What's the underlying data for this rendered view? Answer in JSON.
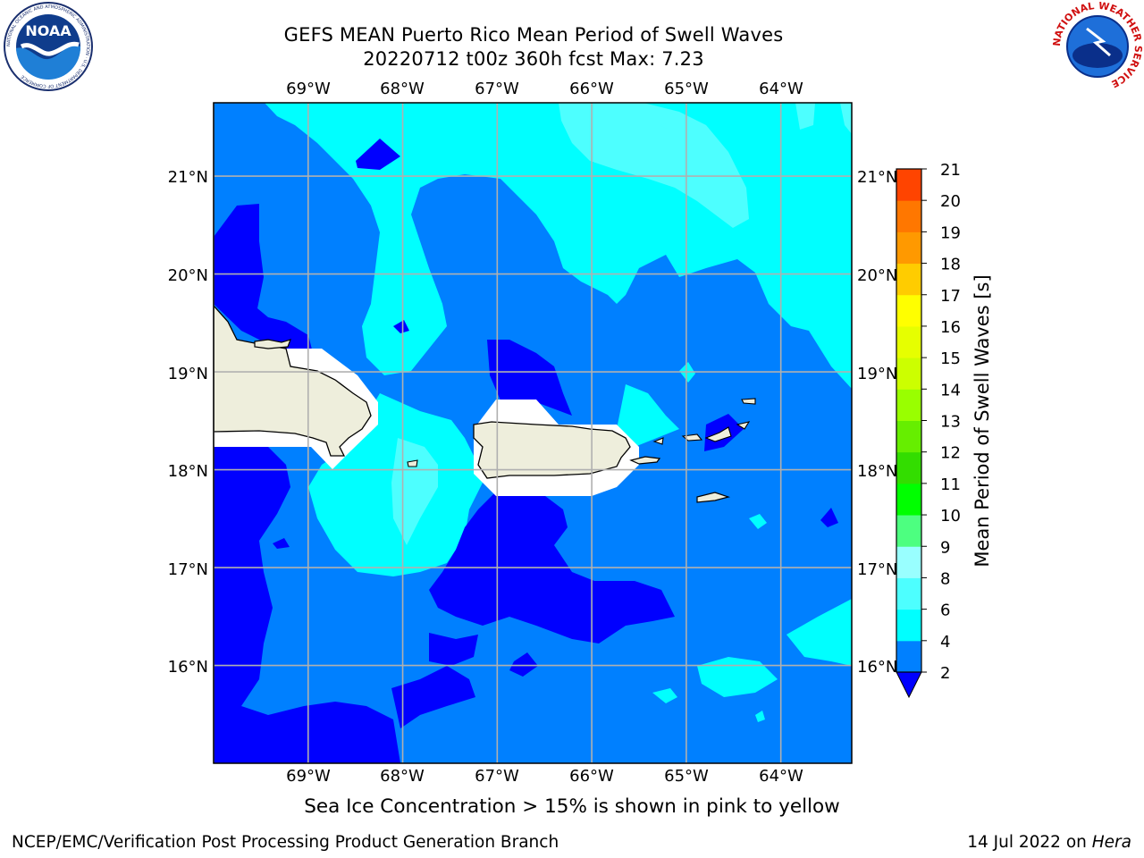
{
  "title": {
    "line1": "GEFS MEAN Puerto Rico Mean Period of Swell Waves",
    "line2": "20220712 t00z 360h fcst   Max: 7.23"
  },
  "subtitle": "Sea Ice Concentration > 15% is shown in pink to yellow",
  "footer": {
    "left": "NCEP/EMC/Verification Post Processing Product Generation Branch",
    "right_prefix": "14 Jul 2022 on ",
    "right_machine": "Hera"
  },
  "map": {
    "lon_labels": [
      "69°W",
      "68°W",
      "67°W",
      "66°W",
      "65°W",
      "64°W"
    ],
    "lat_labels": [
      "21°N",
      "20°N",
      "19°N",
      "18°N",
      "17°N",
      "16°N"
    ],
    "lon_range": [
      -70,
      -63.25
    ],
    "lat_range": [
      15,
      21.75
    ],
    "colors": {
      "ocean_2_4": "#0080ff",
      "ocean_lt2": "#0000ff",
      "ocean_4_6": "#00ffff",
      "ocean_6_8": "#4dffff",
      "land": "#eeeedc",
      "nodata": "#ffffff",
      "grid": "#b0b0b0"
    }
  },
  "colorbar": {
    "label": "Mean Period of Swell Waves [s]",
    "ticks": [
      "2",
      "4",
      "6",
      "8",
      "9",
      "10",
      "11",
      "12",
      "13",
      "14",
      "15",
      "16",
      "17",
      "18",
      "19",
      "20",
      "21"
    ],
    "colors": [
      "#0000ff",
      "#0080ff",
      "#00ffff",
      "#4dffff",
      "#99ffff",
      "#4dff80",
      "#00ff00",
      "#33dd00",
      "#66ee00",
      "#99ff00",
      "#ccff00",
      "#e6ff00",
      "#ffff00",
      "#ffcc00",
      "#ff9900",
      "#ff7700",
      "#ff4400",
      "#ff0000"
    ]
  },
  "logos": {
    "noaa": "NOAA",
    "noaa_ring": "NATIONAL OCEANIC AND ATMOSPHERIC ADMINISTRATION · U.S. DEPARTMENT OF COMMERCE",
    "nws": "NATIONAL WEATHER SERVICE"
  }
}
